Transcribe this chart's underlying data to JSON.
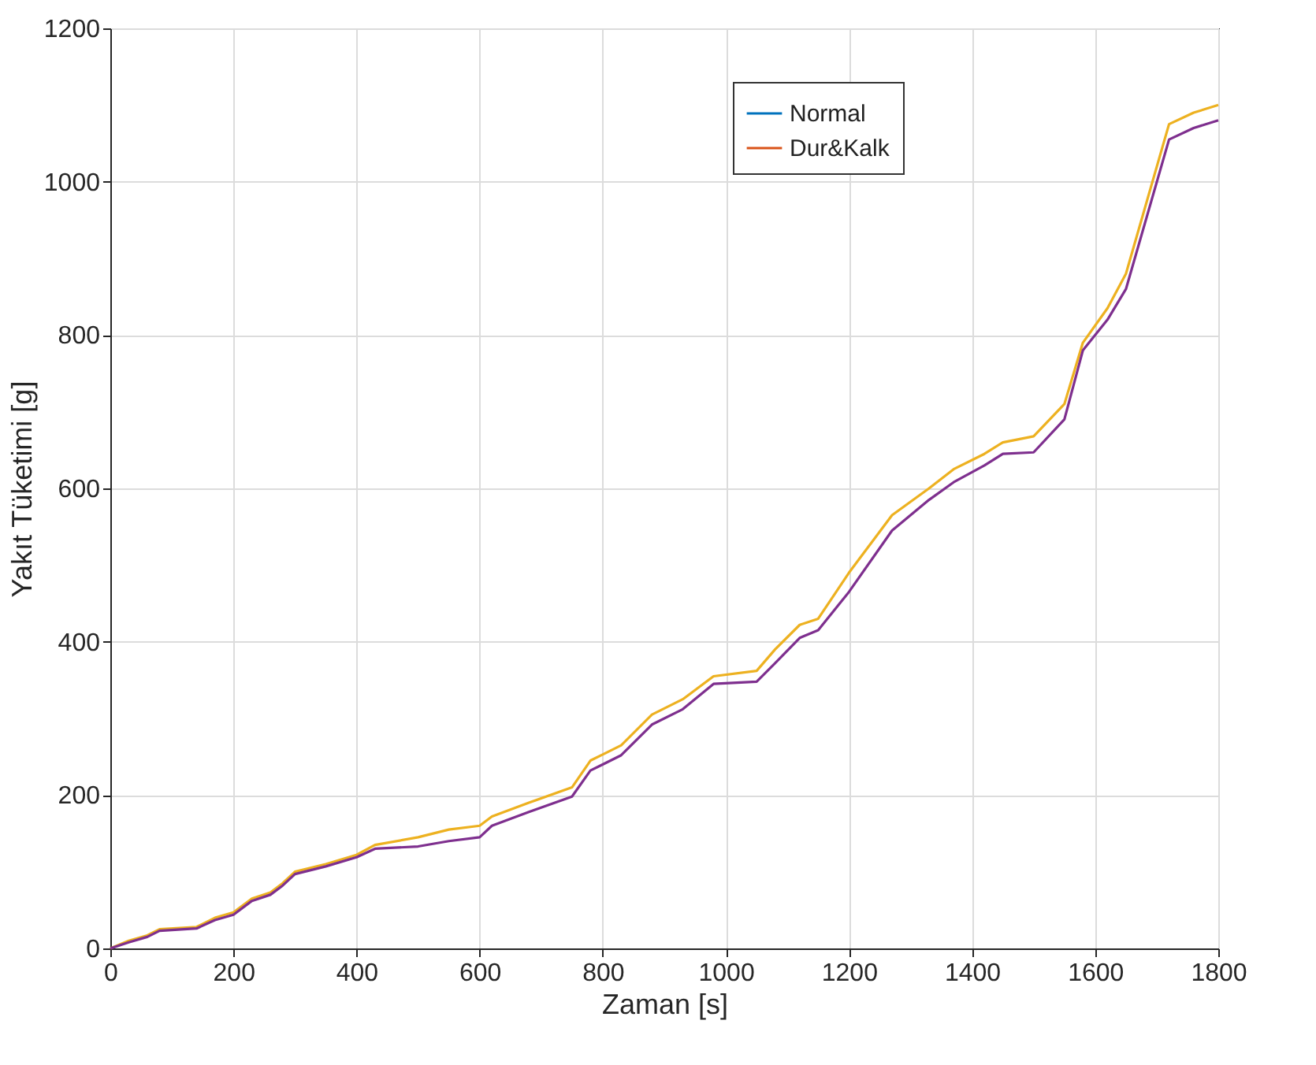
{
  "chart_data": {
    "type": "line",
    "xlabel": "Zaman [s]",
    "ylabel": "Yakıt Tüketimi [g]",
    "xlim": [
      0,
      1800
    ],
    "xticks": [
      0,
      200,
      400,
      600,
      800,
      1000,
      1200,
      1400,
      1600,
      1800
    ],
    "ylim": [
      0,
      1200
    ],
    "yticks": [
      0,
      200,
      400,
      600,
      800,
      1000,
      1200
    ],
    "grid": true,
    "legend": "top right",
    "x": [
      0,
      30,
      60,
      80,
      140,
      170,
      200,
      230,
      260,
      280,
      300,
      350,
      400,
      430,
      500,
      550,
      600,
      620,
      680,
      750,
      780,
      830,
      880,
      930,
      980,
      1050,
      1080,
      1120,
      1150,
      1200,
      1270,
      1330,
      1370,
      1420,
      1450,
      1500,
      1550,
      1580,
      1620,
      1650,
      1720,
      1760,
      1800
    ],
    "series": [
      {
        "name": "Normal",
        "color": "#0072bd",
        "values": [
          null,
          null,
          null,
          null,
          null,
          null,
          null,
          null,
          null,
          null,
          null,
          null,
          null,
          null,
          null,
          null,
          null,
          null,
          null,
          null,
          null,
          null,
          null,
          null,
          null,
          null,
          null,
          null,
          null,
          null,
          null,
          null,
          null,
          null,
          null,
          null,
          null,
          null,
          null,
          null,
          null,
          null,
          null
        ]
      },
      {
        "name": "Dur&Kalk",
        "color": "#d95319",
        "values": [
          null,
          null,
          null,
          null,
          null,
          null,
          null,
          null,
          null,
          null,
          null,
          null,
          null,
          null,
          null,
          null,
          null,
          null,
          null,
          null,
          null,
          null,
          null,
          null,
          null,
          null,
          null,
          null,
          null,
          null,
          null,
          null,
          null,
          null,
          null,
          null,
          null,
          null,
          null,
          null,
          null,
          null,
          null
        ]
      },
      {
        "color": "#edb120",
        "values": [
          0,
          10,
          17,
          25,
          28,
          40,
          47,
          65,
          73,
          85,
          100,
          110,
          122,
          135,
          145,
          155,
          160,
          172,
          190,
          210,
          245,
          265,
          305,
          325,
          355,
          362,
          390,
          422,
          430,
          490,
          565,
          600,
          625,
          645,
          660,
          668,
          710,
          790,
          835,
          880,
          1075,
          1090,
          1100
        ]
      },
      {
        "color": "#7e2f8e",
        "values": [
          0,
          8,
          15,
          23,
          26,
          37,
          44,
          62,
          70,
          82,
          97,
          107,
          119,
          130,
          133,
          140,
          145,
          160,
          178,
          198,
          232,
          252,
          292,
          312,
          345,
          348,
          372,
          405,
          415,
          465,
          545,
          585,
          608,
          630,
          645,
          647,
          690,
          780,
          820,
          860,
          1055,
          1070,
          1080
        ]
      }
    ]
  }
}
